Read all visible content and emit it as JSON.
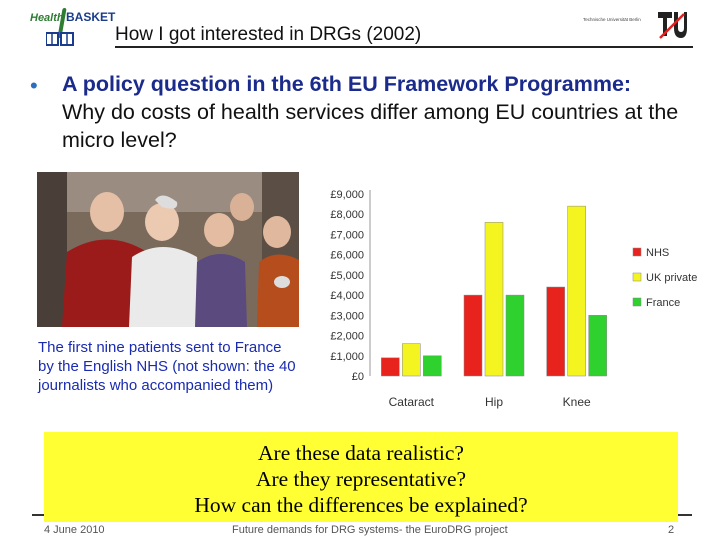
{
  "header": {
    "logo_health": "Health",
    "logo_basket": "BASKET",
    "title": "How I got interested in DRGs (2002)",
    "tu_text": "Technische Universität Berlin"
  },
  "bullet": {
    "highlight": "A policy question in the 6th EU Framework Programme:",
    "rest": "Why do costs of health services differ among EU countries at the micro level?"
  },
  "photo": {
    "caption": "The first nine patients sent to France by the English NHS (not shown: the 40 journalists who accompanied them)"
  },
  "chart_data": {
    "type": "bar",
    "categories": [
      "Cataract",
      "Hip",
      "Knee"
    ],
    "series": [
      {
        "name": "NHS",
        "color": "#e8231d",
        "values": [
          900,
          4000,
          4400
        ]
      },
      {
        "name": "UK private",
        "color": "#f4f421",
        "values": [
          1600,
          7600,
          8400
        ]
      },
      {
        "name": "France",
        "color": "#2fd12f",
        "values": [
          1000,
          4000,
          3000
        ]
      }
    ],
    "yticks": [
      "£0",
      "£1,000",
      "£2,000",
      "£3,000",
      "£4,000",
      "£5,000",
      "£6,000",
      "£7,000",
      "£8,000",
      "£9,000"
    ],
    "ylim": [
      0,
      9000
    ],
    "legend_position": "right"
  },
  "callout": {
    "lines": [
      "Are these data realistic?",
      "Are they representative?",
      "How can the differences be explained?"
    ]
  },
  "footer": {
    "date": "4 June 2010",
    "project": "Future demands for DRG systems- the EuroDRG project",
    "page": "2"
  }
}
